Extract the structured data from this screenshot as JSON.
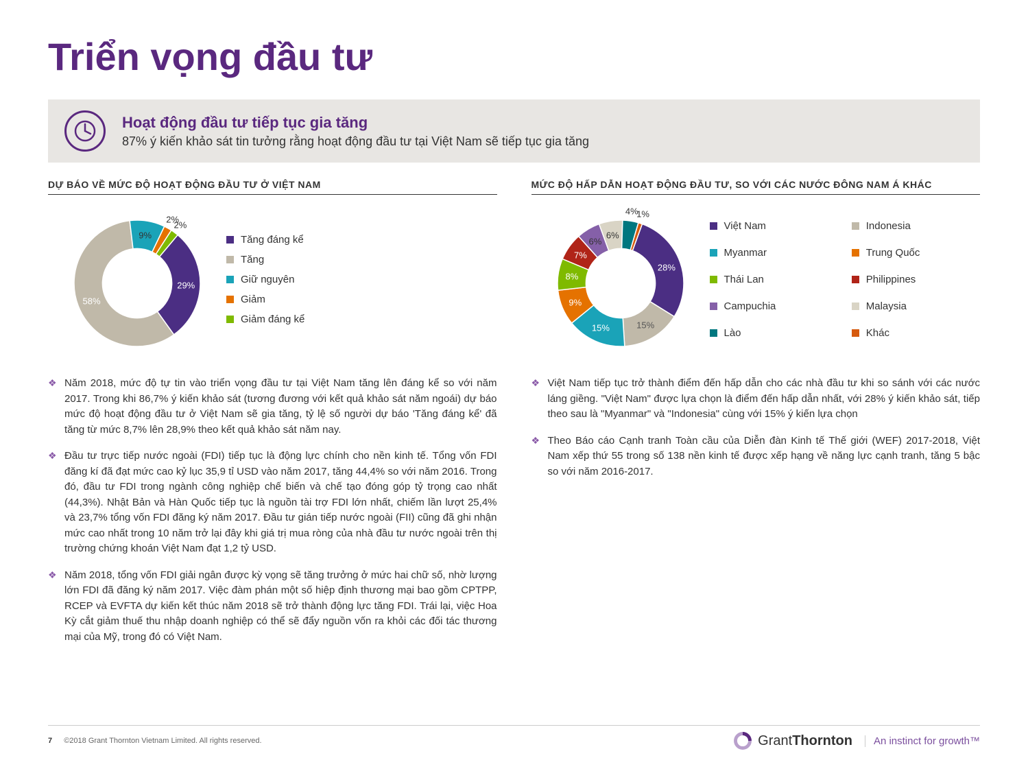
{
  "title": {
    "text": "Triển vọng đầu tư",
    "color": "#5a287f"
  },
  "callout": {
    "heading": "Hoạt động đầu tư tiếp tục gia tăng",
    "heading_color": "#5a287f",
    "sub": "87% ý kiến khảo sát tin tưởng rằng hoạt động đầu tư tại Việt Nam sẽ tiếp tục gia tăng",
    "icon_color": "#5a287f"
  },
  "left": {
    "section_title": "DỰ BÁO VỀ MỨC ĐỘ HOẠT ĐỘNG ĐẦU TƯ Ở VIỆT NAM",
    "chart": {
      "type": "donut",
      "inner_ratio": 0.55,
      "start_angle_deg": 40,
      "slices": [
        {
          "label": "Tăng đáng kể",
          "value": 29,
          "text": "29%",
          "color": "#4b2e83",
          "label_color": "#ffffff"
        },
        {
          "label": "Tăng",
          "value": 58,
          "text": "58%",
          "color": "#c0b9a9",
          "label_color": "#ffffff"
        },
        {
          "label": "Giữ nguyên",
          "value": 9,
          "text": "9%",
          "color": "#1aa3b8",
          "label_color": "#333333"
        },
        {
          "label": "Giảm",
          "value": 2,
          "text": "2%",
          "color": "#e57200",
          "label_color": "#333333"
        },
        {
          "label": "Giảm đáng kể",
          "value": 2,
          "text": "2%",
          "color": "#7fba00",
          "label_color": "#333333"
        }
      ]
    },
    "bullets": [
      "Năm 2018, mức độ tự tin vào triển vọng đầu tư tại Việt Nam tăng lên đáng kể so với năm 2017. Trong khi 86,7% ý kiến khảo sát (tương đương với kết quả khảo sát năm ngoái) dự báo mức độ hoạt động đầu tư ở Việt Nam sẽ gia tăng, tỷ lệ số người dự báo 'Tăng đáng kể' đã tăng từ mức 8,7% lên 28,9% theo kết quả khảo sát năm nay.",
      "Đầu tư trực tiếp nước ngoài (FDI) tiếp tục là động lực chính cho nền kinh tế. Tổng vốn FDI đăng kí đã đạt mức cao kỷ lục 35,9 tỉ USD vào năm 2017, tăng 44,4% so với năm 2016. Trong đó, đầu tư FDI trong ngành công nghiệp chế biến và chế tạo đóng góp tỷ trọng cao nhất (44,3%). Nhật Bản và Hàn Quốc tiếp tục là nguồn tài trợ FDI lớn nhất, chiếm lần lượt 25,4% và 23,7% tổng vốn FDI đăng ký năm 2017. Đầu tư gián tiếp nước ngoài (FII) cũng đã ghi nhận mức cao nhất trong 10 năm trở lại đây khi giá trị mua ròng của nhà đầu tư nước ngoài trên thị trường chứng khoán Việt Nam đạt 1,2 tỷ USD.",
      "Năm 2018, tổng vốn FDI giải ngân được kỳ vọng sẽ tăng trưởng ở mức hai chữ số, nhờ lượng lớn FDI đã đăng ký năm 2017. Việc đàm phán một số hiệp định thương mại bao gồm CPTPP, RCEP và EVFTA dự kiến kết thúc năm 2018 sẽ trở thành động lực tăng FDI. Trái lại, việc Hoa Kỳ cắt giảm thuế thu nhập doanh nghiệp có thể sẽ đẩy nguồn vốn ra khỏi các đối tác thương mại của Mỹ, trong đó có Việt Nam."
    ]
  },
  "right": {
    "section_title": "MỨC ĐỘ HẤP DẪN HOẠT ĐỘNG ĐẦU TƯ, SO VỚI CÁC NƯỚC ĐÔNG NAM Á KHÁC",
    "chart": {
      "type": "donut",
      "inner_ratio": 0.55,
      "start_angle_deg": 20,
      "slices": [
        {
          "label": "Việt Nam",
          "value": 28,
          "text": "28%",
          "color": "#4b2e83",
          "label_color": "#ffffff"
        },
        {
          "label": "Indonesia",
          "value": 15,
          "text": "15%",
          "color": "#c0b9a9",
          "label_color": "#555555"
        },
        {
          "label": "Myanmar",
          "value": 15,
          "text": "15%",
          "color": "#1aa3b8",
          "label_color": "#ffffff"
        },
        {
          "label": "Trung Quốc",
          "value": 9,
          "text": "9%",
          "color": "#e57200",
          "label_color": "#ffffff"
        },
        {
          "label": "Thái Lan",
          "value": 8,
          "text": "8%",
          "color": "#7fba00",
          "label_color": "#ffffff"
        },
        {
          "label": "Philippines",
          "value": 7,
          "text": "7%",
          "color": "#b02418",
          "label_color": "#ffffff"
        },
        {
          "label": "Campuchia",
          "value": 6,
          "text": "6%",
          "color": "#8560a8",
          "label_color": "#333333"
        },
        {
          "label": "Malaysia",
          "value": 6,
          "text": "6%",
          "color": "#d9d4c5",
          "label_color": "#333333"
        },
        {
          "label": "Lào",
          "value": 4,
          "text": "4%",
          "color": "#00777f",
          "label_color": "#333333"
        },
        {
          "label": "Khác",
          "value": 1,
          "text": "1%",
          "color": "#d65a0e",
          "label_color": "#333333"
        }
      ]
    },
    "bullets": [
      "Việt Nam tiếp tục trở thành điểm đến hấp dẫn cho các nhà đầu tư khi so sánh với các nước láng giềng. \"Việt Nam\" được lựa chọn là điểm đến hấp dẫn nhất, với 28% ý kiến khảo sát, tiếp theo sau là \"Myanmar\" và \"Indonesia\" cùng với 15% ý kiến lựa chọn",
      "Theo Báo cáo Cạnh tranh Toàn cầu của Diễn đàn Kinh tế Thế giới (WEF) 2017-2018, Việt Nam xếp thứ 55 trong số 138 nền kinh tế được xếp hạng về năng lực cạnh tranh, tăng 5 bậc so với năm 2016-2017."
    ]
  },
  "footer": {
    "page": "7",
    "copyright": "©2018 Grant Thornton Vietnam Limited. All rights reserved.",
    "brand": "GrantThornton",
    "tagline": "An instinct for growth™",
    "ring_outer": "#b9a0cc",
    "ring_inner": "#5a287f"
  }
}
